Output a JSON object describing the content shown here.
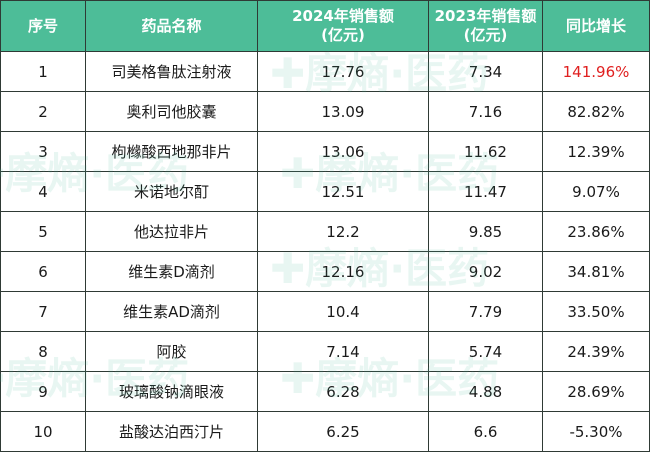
{
  "headers": {
    "index": "序号",
    "name": "药品名称",
    "sales2024_line1": "2024年销售额",
    "sales2024_line2": "(亿元)",
    "sales2023_line1": "2023年销售额",
    "sales2023_line2": "(亿元)",
    "growth": "同比增长"
  },
  "rows": [
    {
      "index": "1",
      "name": "司美格鲁肽注射液",
      "s2024": "17.76",
      "s2023": "7.34",
      "growth": "141.96%"
    },
    {
      "index": "2",
      "name": "奥利司他胶囊",
      "s2024": "13.09",
      "s2023": "7.16",
      "growth": "82.82%"
    },
    {
      "index": "3",
      "name": "枸橼酸西地那非片",
      "s2024": "13.06",
      "s2023": "11.62",
      "growth": "12.39%"
    },
    {
      "index": "4",
      "name": "米诺地尔酊",
      "s2024": "12.51",
      "s2023": "11.47",
      "growth": "9.07%"
    },
    {
      "index": "5",
      "name": "他达拉非片",
      "s2024": "12.2",
      "s2023": "9.85",
      "growth": "23.86%"
    },
    {
      "index": "6",
      "name": "维生素D滴剂",
      "s2024": "12.16",
      "s2023": "9.02",
      "growth": "34.81%"
    },
    {
      "index": "7",
      "name": "维生素AD滴剂",
      "s2024": "10.4",
      "s2023": "7.79",
      "growth": "33.50%"
    },
    {
      "index": "8",
      "name": "阿胶",
      "s2024": "7.14",
      "s2023": "5.74",
      "growth": "24.39%"
    },
    {
      "index": "9",
      "name": "玻璃酸钠滴眼液",
      "s2024": "6.28",
      "s2023": "4.88",
      "growth": "28.69%"
    },
    {
      "index": "10",
      "name": "盐酸达泊西汀片",
      "s2024": "6.25",
      "s2023": "6.6",
      "growth": "-5.30%"
    }
  ],
  "colors": {
    "header_bg": "#4dbd98",
    "header_text": "#ffffff",
    "highlight": "#e02020",
    "border": "#2f3a35"
  },
  "watermark": {
    "text": "摩熵·医药",
    "icon": "medical-cross-icon"
  }
}
